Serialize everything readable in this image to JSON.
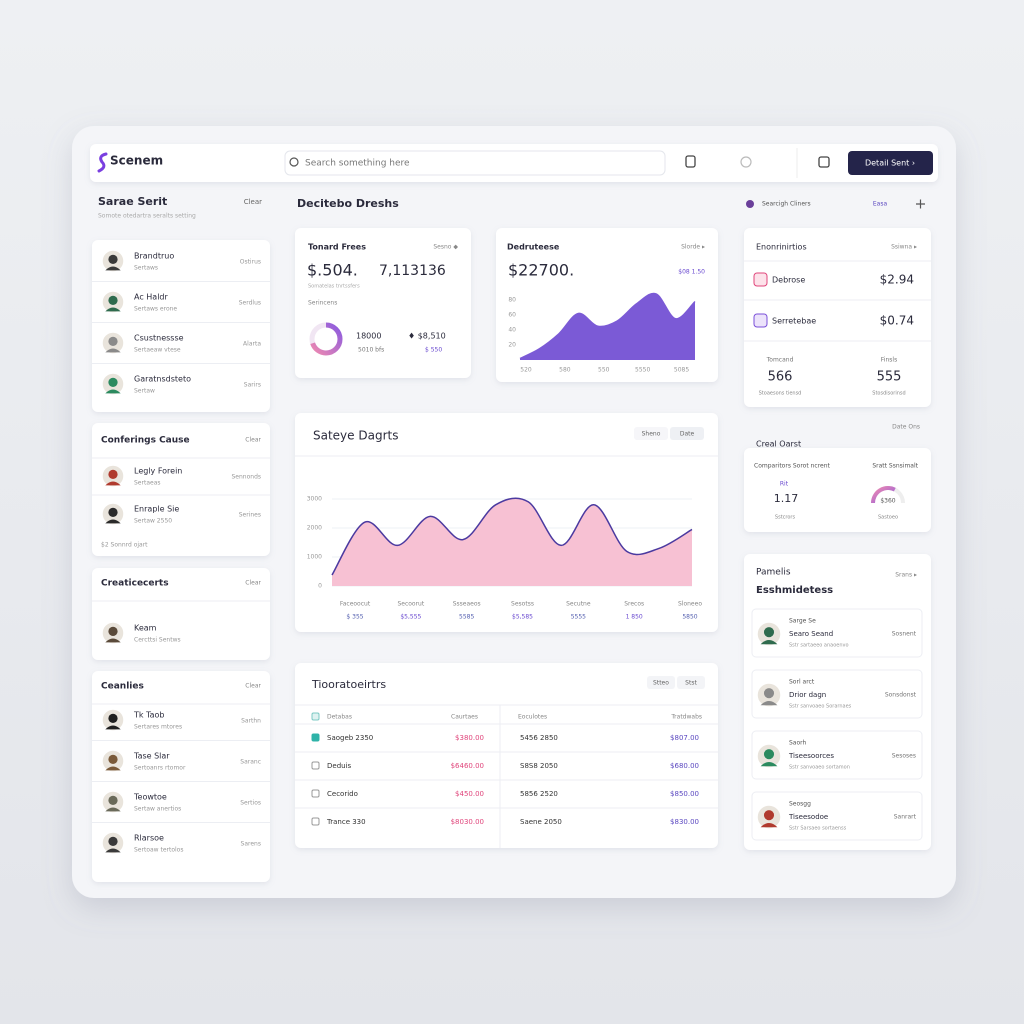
{
  "header": {
    "logo": "Scenem",
    "search": "Search something here",
    "button": "Detail Sent ›"
  },
  "sidebar": {
    "title": "Sarae Serit",
    "action": "Clear",
    "subtitle": "Somote otedartra seralts setting",
    "cards": [
      {
        "items": [
          {
            "name": "Brandtruo",
            "sub": "Sertaws",
            "meta": "Ostirus"
          },
          {
            "name": "Ac Haldr",
            "sub": "Sertaws erone",
            "meta": "Serdlus"
          },
          {
            "name": "Csustnessse",
            "sub": "Sertaeaw vtese",
            "meta": "Alarta"
          },
          {
            "name": "Garatnsdsteto",
            "sub": "Sertaw",
            "meta": "Sarirs"
          }
        ]
      },
      {
        "title": "Conferings Cause",
        "action": "Clear",
        "items": [
          {
            "name": "Legly Forein",
            "sub": "Sertaeas",
            "meta": "Sennonds"
          },
          {
            "name": "Enraple Sie",
            "sub": "Sertaw 2550",
            "meta": "Serines"
          }
        ],
        "footer": "$2 Sonnrd ojart"
      },
      {
        "title": "Creaticecerts",
        "action": "Clear",
        "items": [
          {
            "name": "Keam",
            "sub": "Cercttsi Sentws"
          }
        ]
      },
      {
        "title": "Ceanlies",
        "action": "Clear",
        "items": [
          {
            "name": "Tk Taob",
            "sub": "Sertares mtores",
            "meta": "Sarthn"
          },
          {
            "name": "Tase Slar",
            "sub": "Sertoanrs rtomor",
            "meta": "Saranc"
          },
          {
            "name": "Teowtoe",
            "sub": "Sertaw anertios",
            "meta": "Sertios"
          },
          {
            "name": "Rlarsoe",
            "sub": "Sertoaw tertolos",
            "meta": "Sarens"
          }
        ]
      }
    ]
  },
  "main": {
    "title": "Decitebo Dreshs",
    "total_card": {
      "title": "Tonard Frees",
      "badge": "Sesno ◆",
      "value": "$.504.",
      "value2": "7,113136",
      "caption": "Somatelas tnrtssfers",
      "label": "Serincens",
      "donut": 70,
      "stat1": {
        "value": "18000",
        "sub": "5010 bfs"
      },
      "stat2": {
        "value": "♦ $8,510",
        "sub": "$ 550"
      }
    },
    "revenue_card": {
      "title": "Dedruteese",
      "badge": "Slorde ▸",
      "value": "$22700.",
      "change": "$08 1.50",
      "chart": {
        "type": "area",
        "color": "#7b5ad6",
        "ylim": [
          0,
          100
        ],
        "yticks": [
          80,
          60,
          40,
          20
        ],
        "values": [
          2,
          15,
          35,
          62,
          45,
          52,
          75,
          88,
          55,
          78
        ],
        "categories": [
          "520",
          null,
          "580",
          null,
          "550",
          null,
          "5550",
          null,
          "5085",
          null
        ]
      }
    },
    "sales_card": {
      "title": "Sateye Dagrts",
      "tabs": [
        "Sheno",
        "Date"
      ],
      "chart": {
        "type": "area",
        "color": "#f7c1d3",
        "line_color": "#4b3aa0",
        "ylim": [
          0,
          4000
        ],
        "yticks": [
          3000,
          2000,
          1000,
          0
        ],
        "grid": true,
        "values": [
          380,
          2200,
          1400,
          2400,
          1600,
          2800,
          2900,
          1400,
          2800,
          1200,
          1300,
          1950
        ],
        "x_labels": [
          {
            "top": "Faceoocut",
            "bottom": "$ 355"
          },
          {
            "top": "Secoorut",
            "bottom": "$5,555"
          },
          {
            "top": "Ssseaeos",
            "bottom": "5585"
          },
          {
            "top": "Sesotss",
            "bottom": "$5,585"
          },
          {
            "top": "Secutne",
            "bottom": "5555"
          },
          {
            "top": "Srecos",
            "bottom": "1 850"
          },
          {
            "top": "Sloneeo",
            "bottom": "5850"
          }
        ]
      }
    },
    "table_card": {
      "title": "Tiooratoeirtrs",
      "tabs": [
        "Stteo",
        "Stst"
      ],
      "columns": [
        "Detabas",
        "Caurtaes",
        "Eoculotes",
        "Tratdwabs"
      ],
      "rows": [
        [
          "Saogeb 2350",
          "$380.00",
          "5456 2850",
          "$807.00"
        ],
        [
          "Deduis",
          "$6460.00",
          "S8S8 2050",
          "$680.00"
        ],
        [
          "Cecorido",
          "$450.00",
          "5856 2520",
          "$850.00"
        ],
        [
          "Trance 330",
          "$8030.00",
          "Saene 2050",
          "$830.00"
        ]
      ]
    }
  },
  "aside": {
    "title": "Searcigh Cliners",
    "action": "Easa",
    "totals_card": {
      "title": "Enonrinirtios",
      "badge": "Ssiwna ▸",
      "rows": [
        {
          "name": "Debrose",
          "value": "$2.94"
        },
        {
          "name": "Serretebae",
          "value": "$0.74"
        }
      ],
      "stats": [
        {
          "label": "Tomcand",
          "value": "566",
          "sub": "Stoaesons tiensd"
        },
        {
          "label": "Finsls",
          "value": "555",
          "sub": "Stosdisorinsd"
        }
      ]
    },
    "date_label": "Date Ons",
    "cost_title": "Creal Oarst",
    "cost_card": {
      "left_label": "Comparitors Sorot ncrent",
      "right_label": "Sratt Ssnsimalt",
      "left_tag": "Rit",
      "left_value": "1.17",
      "left_sub": "Sstcrors",
      "gauge": 65,
      "gauge_label": "$360",
      "right_sub": "Sastoeo"
    },
    "people_card": {
      "title": "Pamelis",
      "subtitle": "Esshmidetess",
      "badge": "Srans ▸",
      "items": [
        {
          "name": "Sarge Se",
          "sub": "Searo Seand",
          "detail": "Sstr sartaeeo anaoenvo",
          "meta": "Sosnent"
        },
        {
          "name": "Sorl arct",
          "sub": "Drior dagn",
          "detail": "Sstr sanvoaeo Sorarnaes",
          "meta": "Sonsdonst"
        },
        {
          "name": "Saorh",
          "sub": "Tiseesoorces",
          "detail": "Sstr sanvoaeo sortamon",
          "meta": "Sesoses"
        },
        {
          "name": "Seosgg",
          "sub": "Tiseesodoe",
          "detail": "Sstr Sarsaeo sortaenss",
          "meta": "Sanrart"
        }
      ]
    }
  }
}
